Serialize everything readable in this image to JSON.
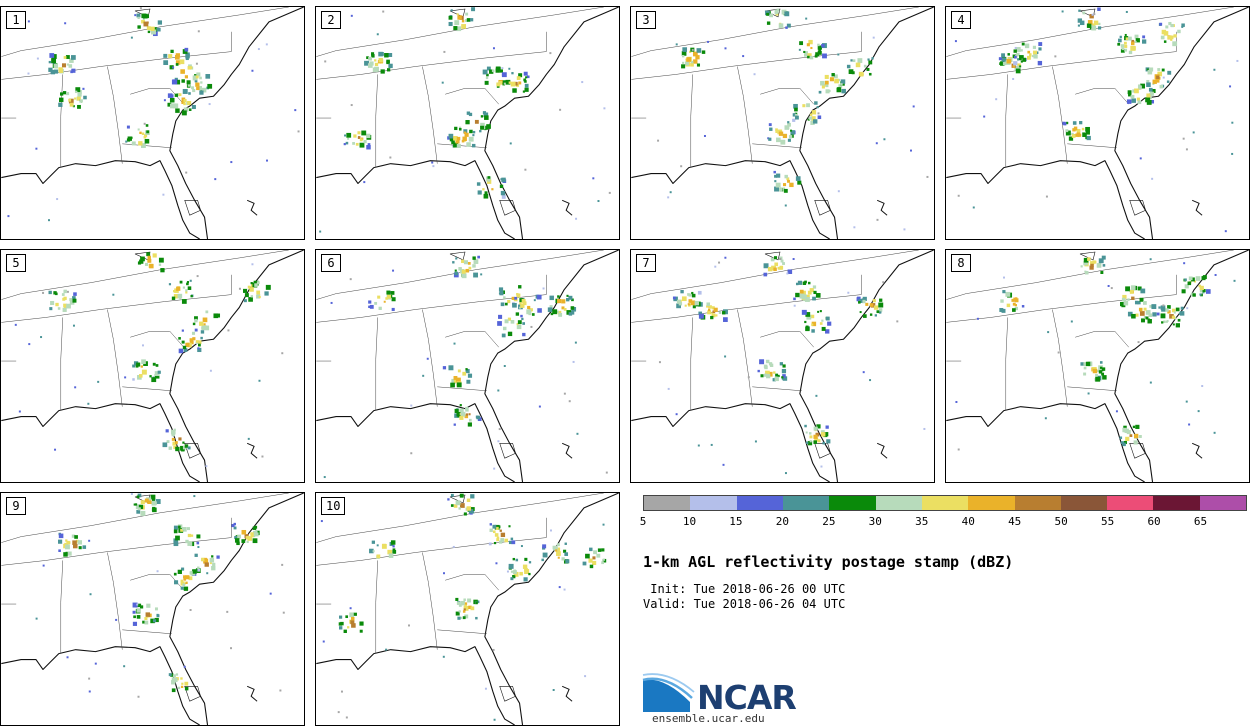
{
  "members": [
    "1",
    "2",
    "3",
    "4",
    "5",
    "6",
    "7",
    "8",
    "9",
    "10"
  ],
  "legend": {
    "colors": [
      "#a6a6a6",
      "#b4bfea",
      "#5564d8",
      "#4a9497",
      "#0a8a0a",
      "#b7dbbb",
      "#ebdf62",
      "#eab22a",
      "#b87e30",
      "#8a5638",
      "#ec4d77",
      "#6b1634",
      "#ad4ea9"
    ],
    "ticks": [
      "5",
      "10",
      "15",
      "20",
      "25",
      "30",
      "35",
      "40",
      "45",
      "50",
      "55",
      "60",
      "65"
    ]
  },
  "title": "1-km AGL reflectivity postage stamp (dBZ)",
  "init": " Init: Tue 2018-06-26 00 UTC",
  "valid": "Valid: Tue 2018-06-26 04 UTC",
  "logo": {
    "name": "NCAR",
    "site": "ensemble.ucar.edu"
  }
}
